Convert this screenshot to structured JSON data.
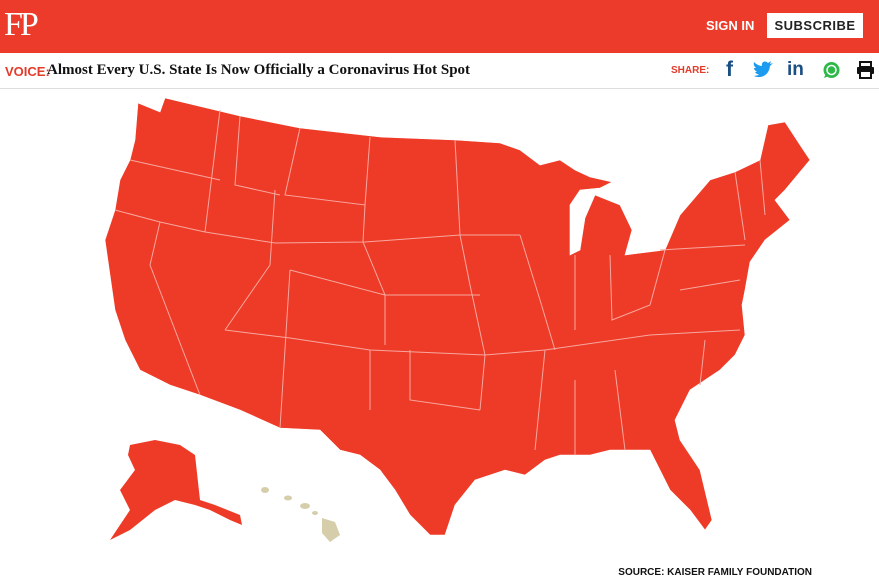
{
  "header": {
    "logo": "FP",
    "sign_in": "SIGN IN",
    "subscribe": "SUBSCRIBE"
  },
  "article": {
    "kicker": "VOICE:",
    "title": "Almost Every U.S. State Is Now Officially a Coronavirus Hot Spot",
    "share_label": "SHARE:",
    "share_icons": [
      "f",
      "in"
    ]
  },
  "map": {
    "source": "SOURCE: KAISER FAMILY FOUNDATION"
  }
}
